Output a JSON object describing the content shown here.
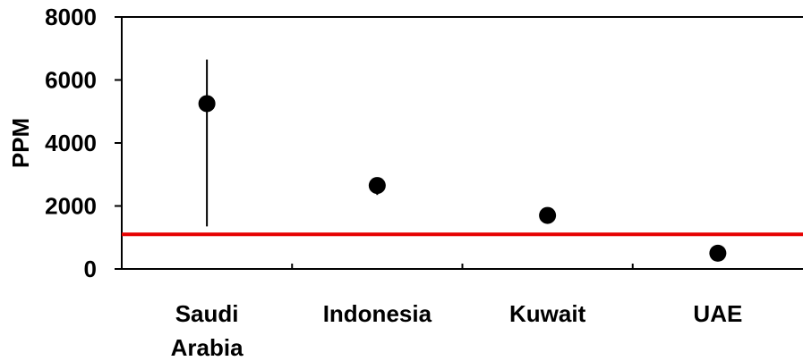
{
  "chart_data": {
    "type": "scatter",
    "title": "",
    "xlabel": "",
    "ylabel": "PPM",
    "ylim": [
      0,
      8000
    ],
    "yticks": [
      0,
      2000,
      4000,
      6000,
      8000
    ],
    "categories": [
      {
        "lines": [
          "Saudi",
          "Arabia"
        ]
      },
      {
        "lines": [
          "Indonesia"
        ]
      },
      {
        "lines": [
          "Kuwait"
        ]
      },
      {
        "lines": [
          "UAE"
        ]
      }
    ],
    "series": [
      {
        "values": [
          5250,
          2650,
          1700,
          500
        ],
        "error_low": [
          1350,
          2350,
          null,
          null
        ],
        "error_high": [
          6650,
          2650,
          null,
          null
        ],
        "color": "#000000"
      }
    ],
    "reference_line": {
      "value": 1100,
      "color": "#e60000"
    },
    "grid": false,
    "legend": "none"
  }
}
